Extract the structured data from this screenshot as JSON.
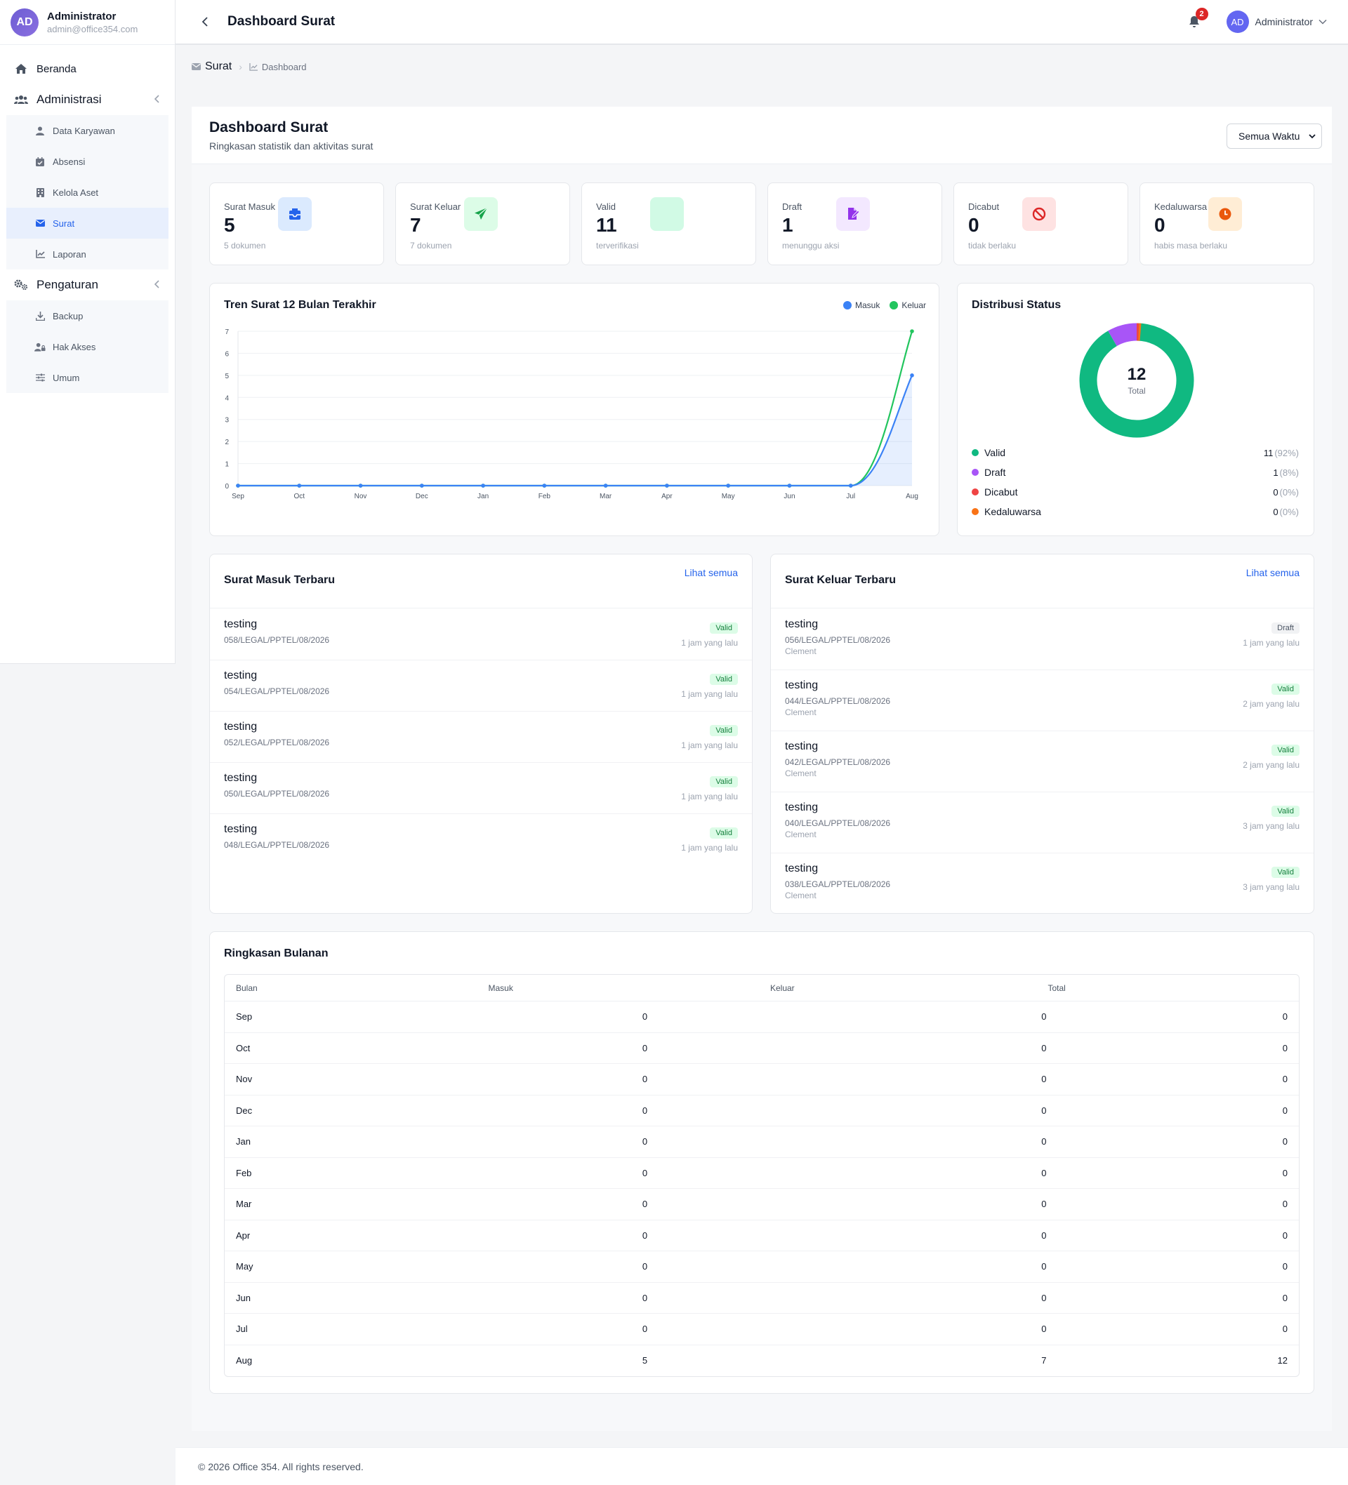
{
  "sidebar": {
    "avatar": "AD",
    "user_name": "Administrator",
    "user_email": "admin@office354.com",
    "home": "Beranda",
    "admin_group": "Administrasi",
    "admin_items": [
      "Data Karyawan",
      "Absensi",
      "Kelola Aset",
      "Surat",
      "Laporan"
    ],
    "settings_group": "Pengaturan",
    "settings_items": [
      "Backup",
      "Hak Akses",
      "Umum"
    ]
  },
  "topbar": {
    "title": "Dashboard Surat",
    "notif_count": "2",
    "avatar": "AD",
    "user": "Administrator"
  },
  "breadcrumb": {
    "root": "Surat",
    "current": "Dashboard"
  },
  "header": {
    "title": "Dashboard Surat",
    "subtitle": "Ringkasan statistik dan aktivitas surat",
    "period": "Semua Waktu"
  },
  "stats": [
    {
      "label": "Surat Masuk",
      "value": "5",
      "sub": "5 dokumen",
      "icon": "inbox-icon",
      "bg": "#dbeafe",
      "color": "#2563eb"
    },
    {
      "label": "Surat Keluar",
      "value": "7",
      "sub": "7 dokumen",
      "icon": "send-icon",
      "bg": "#dcfce7",
      "color": "#16a34a"
    },
    {
      "label": "Valid",
      "value": "11",
      "sub": "terverifikasi",
      "icon": "check-icon",
      "bg": "#d1fae5",
      "color": "#10b981"
    },
    {
      "label": "Draft",
      "value": "1",
      "sub": "menunggu aksi",
      "icon": "file-edit-icon",
      "bg": "#f3e8ff",
      "color": "#9333ea"
    },
    {
      "label": "Dicabut",
      "value": "0",
      "sub": "tidak berlaku",
      "icon": "ban-icon",
      "bg": "#fee2e2",
      "color": "#dc2626"
    },
    {
      "label": "Kedaluwarsa",
      "value": "0",
      "sub": "habis masa berlaku",
      "icon": "clock-icon",
      "bg": "#ffedd5",
      "color": "#ea580c"
    }
  ],
  "trend": {
    "title": "Tren Surat 12 Bulan Terakhir",
    "legend_masuk": "Masuk",
    "legend_keluar": "Keluar"
  },
  "chart_data": {
    "type": "line",
    "x": [
      "Sep",
      "Oct",
      "Nov",
      "Dec",
      "Jan",
      "Feb",
      "Mar",
      "Apr",
      "May",
      "Jun",
      "Jul",
      "Aug"
    ],
    "series": [
      {
        "name": "Masuk",
        "values": [
          0,
          0,
          0,
          0,
          0,
          0,
          0,
          0,
          0,
          0,
          0,
          5
        ],
        "color": "#3b82f6"
      },
      {
        "name": "Keluar",
        "values": [
          0,
          0,
          0,
          0,
          0,
          0,
          0,
          0,
          0,
          0,
          0,
          7
        ],
        "color": "#22c55e"
      }
    ],
    "ylim": [
      0,
      7
    ],
    "yticks": [
      0,
      1,
      2,
      3,
      4,
      5,
      6,
      7
    ],
    "grid": true,
    "legend": "top-right"
  },
  "distribution": {
    "title": "Distribusi Status",
    "total": "12",
    "total_label": "Total",
    "items": [
      {
        "label": "Valid",
        "value": "11",
        "pct": "(92%)",
        "color": "#10b981"
      },
      {
        "label": "Draft",
        "value": "1",
        "pct": "(8%)",
        "color": "#a855f7"
      },
      {
        "label": "Dicabut",
        "value": "0",
        "pct": "(0%)",
        "color": "#ef4444"
      },
      {
        "label": "Kedaluwarsa",
        "value": "0",
        "pct": "(0%)",
        "color": "#f97316"
      }
    ]
  },
  "incoming": {
    "title": "Surat Masuk Terbaru",
    "link": "Lihat semua",
    "items": [
      {
        "title": "testing",
        "number": "058/LEGAL/PPTEL/08/2026",
        "status": "Valid",
        "time": "1 jam yang lalu"
      },
      {
        "title": "testing",
        "number": "054/LEGAL/PPTEL/08/2026",
        "status": "Valid",
        "time": "1 jam yang lalu"
      },
      {
        "title": "testing",
        "number": "052/LEGAL/PPTEL/08/2026",
        "status": "Valid",
        "time": "1 jam yang lalu"
      },
      {
        "title": "testing",
        "number": "050/LEGAL/PPTEL/08/2026",
        "status": "Valid",
        "time": "1 jam yang lalu"
      },
      {
        "title": "testing",
        "number": "048/LEGAL/PPTEL/08/2026",
        "status": "Valid",
        "time": "1 jam yang lalu"
      }
    ]
  },
  "outgoing": {
    "title": "Surat Keluar Terbaru",
    "link": "Lihat semua",
    "items": [
      {
        "title": "testing",
        "number": "056/LEGAL/PPTEL/08/2026",
        "recipient": "Clement",
        "status": "Draft",
        "time": "1 jam yang lalu"
      },
      {
        "title": "testing",
        "number": "044/LEGAL/PPTEL/08/2026",
        "recipient": "Clement",
        "status": "Valid",
        "time": "2 jam yang lalu"
      },
      {
        "title": "testing",
        "number": "042/LEGAL/PPTEL/08/2026",
        "recipient": "Clement",
        "status": "Valid",
        "time": "2 jam yang lalu"
      },
      {
        "title": "testing",
        "number": "040/LEGAL/PPTEL/08/2026",
        "recipient": "Clement",
        "status": "Valid",
        "time": "3 jam yang lalu"
      },
      {
        "title": "testing",
        "number": "038/LEGAL/PPTEL/08/2026",
        "recipient": "Clement",
        "status": "Valid",
        "time": "3 jam yang lalu"
      }
    ]
  },
  "monthly": {
    "title": "Ringkasan Bulanan",
    "columns": [
      "Bulan",
      "Masuk",
      "Keluar",
      "Total"
    ],
    "rows": [
      [
        "Sep",
        "0",
        "0",
        "0"
      ],
      [
        "Oct",
        "0",
        "0",
        "0"
      ],
      [
        "Nov",
        "0",
        "0",
        "0"
      ],
      [
        "Dec",
        "0",
        "0",
        "0"
      ],
      [
        "Jan",
        "0",
        "0",
        "0"
      ],
      [
        "Feb",
        "0",
        "0",
        "0"
      ],
      [
        "Mar",
        "0",
        "0",
        "0"
      ],
      [
        "Apr",
        "0",
        "0",
        "0"
      ],
      [
        "May",
        "0",
        "0",
        "0"
      ],
      [
        "Jun",
        "0",
        "0",
        "0"
      ],
      [
        "Jul",
        "0",
        "0",
        "0"
      ],
      [
        "Aug",
        "5",
        "7",
        "12"
      ]
    ]
  },
  "footer": "© 2026 Office 354. All rights reserved."
}
